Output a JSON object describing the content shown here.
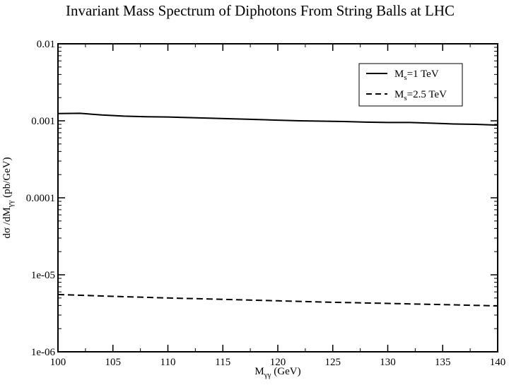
{
  "chart_data": {
    "type": "line",
    "title": "Invariant Mass Spectrum of Diphotons From String Balls at LHC",
    "xlabel": {
      "main": "M",
      "sub": "γγ",
      "unit": " (GeV)"
    },
    "ylabel": {
      "prefix": "dσ /dM",
      "sub": "γγ",
      "unit": " (pb/GeV)"
    },
    "xlim": [
      100,
      140
    ],
    "ylim": [
      1e-06,
      0.01
    ],
    "yscale": "log",
    "x_ticks": [
      100,
      105,
      110,
      115,
      120,
      125,
      130,
      135,
      140
    ],
    "x_tick_labels": [
      "100",
      "105",
      "110",
      "115",
      "120",
      "125",
      "130",
      "135",
      "140"
    ],
    "y_ticks": [
      1e-06,
      1e-05,
      0.0001,
      0.001,
      0.01
    ],
    "y_tick_labels": [
      "1e-06",
      "1e-05",
      "0.0001",
      "0.001",
      "0.01"
    ],
    "legend_position": "top-right",
    "series": [
      {
        "name": "M_s=1 TeV",
        "label_main": "M",
        "label_sub": "s",
        "label_rest": "=1 TeV",
        "style": "solid",
        "x": [
          100,
          102,
          104,
          106,
          108,
          110,
          112,
          114,
          116,
          118,
          120,
          122,
          124,
          126,
          128,
          130,
          132,
          134,
          136,
          138,
          140
        ],
        "y": [
          0.00124,
          0.00125,
          0.00119,
          0.00115,
          0.00113,
          0.00112,
          0.0011,
          0.00108,
          0.00106,
          0.00104,
          0.00102,
          0.001,
          0.00099,
          0.00098,
          0.00096,
          0.00095,
          0.00095,
          0.00093,
          0.00091,
          0.0009,
          0.00088
        ]
      },
      {
        "name": "M_s=2.5 TeV",
        "label_main": "M",
        "label_sub": "s",
        "label_rest": "=2.5 TeV",
        "style": "dashed",
        "x": [
          100,
          105,
          110,
          115,
          120,
          125,
          130,
          135,
          140
        ],
        "y": [
          5.55e-06,
          5.25e-06,
          5e-06,
          4.8e-06,
          4.6e-06,
          4.4e-06,
          4.25e-06,
          4.1e-06,
          3.95e-06
        ]
      }
    ]
  }
}
